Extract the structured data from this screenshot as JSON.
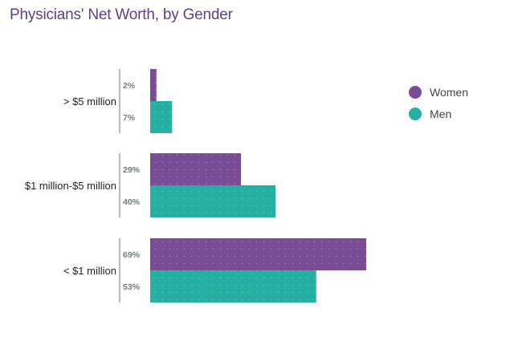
{
  "title": "Physicians' Net Worth, by Gender",
  "colors": {
    "women": "#7b4c96",
    "men": "#25b0a4",
    "title": "#5e3f8a",
    "axis": "#b3bcbc"
  },
  "chart_data": {
    "type": "bar",
    "orientation": "horizontal",
    "title": "Physicians' Net Worth, by Gender",
    "categories": [
      "> $5 million",
      "$1 million-$5 million",
      "< $1 million"
    ],
    "series": [
      {
        "name": "Women",
        "color": "#7b4c96",
        "values": [
          2,
          29,
          69
        ],
        "labels": [
          "2%",
          "29%",
          "69%"
        ]
      },
      {
        "name": "Men",
        "color": "#25b0a4",
        "values": [
          7,
          40,
          53
        ],
        "labels": [
          "7%",
          "40%",
          "53%"
        ]
      }
    ],
    "xlim": [
      0,
      100
    ],
    "xlabel": "",
    "ylabel": "",
    "grid": false,
    "legend": {
      "position": "right",
      "entries": [
        "Women",
        "Men"
      ]
    }
  }
}
